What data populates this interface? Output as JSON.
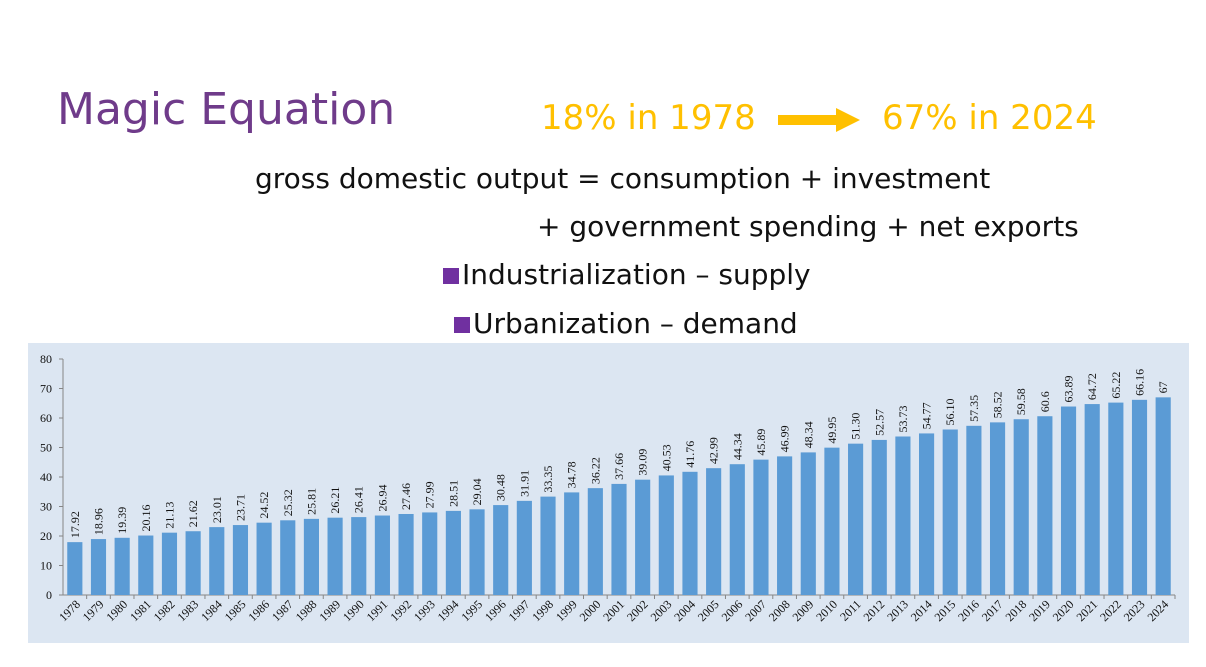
{
  "slide": {
    "title": "Magic Equation",
    "stat_from": "18%  in 1978",
    "stat_to": "67% in 2024",
    "equation_line1": "gross domestic output = consumption + investment",
    "equation_line2": "+ government spending + net exports",
    "bullets": [
      "Industrialization – supply",
      "Urbanization – demand"
    ]
  },
  "colors": {
    "title": "#6f3b8a",
    "accent": "#ffc000",
    "bullet": "#7030a0",
    "bar": "#5b9bd5",
    "chart_bg": "#dce6f2"
  },
  "chart_data": {
    "type": "bar",
    "title": "",
    "xlabel": "",
    "ylabel": "",
    "ylim": [
      0,
      80
    ],
    "yticks": [
      0,
      10,
      20,
      30,
      40,
      50,
      60,
      70,
      80
    ],
    "grid": false,
    "categories": [
      "1978",
      "1979",
      "1980",
      "1981",
      "1982",
      "1983",
      "1984",
      "1985",
      "1986",
      "1987",
      "1988",
      "1989",
      "1990",
      "1991",
      "1992",
      "1993",
      "1994",
      "1995",
      "1996",
      "1997",
      "1998",
      "1999",
      "2000",
      "2001",
      "2002",
      "2003",
      "2004",
      "2005",
      "2006",
      "2007",
      "2008",
      "2009",
      "2010",
      "2011",
      "2012",
      "2013",
      "2014",
      "2015",
      "2016",
      "2017",
      "2018",
      "2019",
      "2020",
      "2021",
      "2022",
      "2023",
      "2024"
    ],
    "values": [
      17.92,
      18.96,
      19.39,
      20.16,
      21.13,
      21.62,
      23.01,
      23.71,
      24.52,
      25.32,
      25.81,
      26.21,
      26.41,
      26.94,
      27.46,
      27.99,
      28.51,
      29.04,
      30.48,
      31.91,
      33.35,
      34.78,
      36.22,
      37.66,
      39.09,
      40.53,
      41.76,
      42.99,
      44.34,
      45.89,
      46.99,
      48.34,
      49.95,
      51.3,
      52.57,
      53.73,
      54.77,
      56.1,
      57.35,
      58.52,
      59.58,
      60.6,
      63.89,
      64.72,
      65.22,
      66.16,
      67
    ],
    "value_labels": [
      "17.92",
      "18.96",
      "19.39",
      "20.16",
      "21.13",
      "21.62",
      "23.01",
      "23.71",
      "24.52",
      "25.32",
      "25.81",
      "26.21",
      "26.41",
      "26.94",
      "27.46",
      "27.99",
      "28.51",
      "29.04",
      "30.48",
      "31.91",
      "33.35",
      "34.78",
      "36.22",
      "37.66",
      "39.09",
      "40.53",
      "41.76",
      "42.99",
      "44.34",
      "45.89",
      "46.99",
      "48.34",
      "49.95",
      "51.30",
      "52.57",
      "53.73",
      "54.77",
      "56.10",
      "57.35",
      "58.52",
      "59.58",
      "60.6",
      "63.89",
      "64.72",
      "65.22",
      "66.16",
      "67"
    ]
  }
}
